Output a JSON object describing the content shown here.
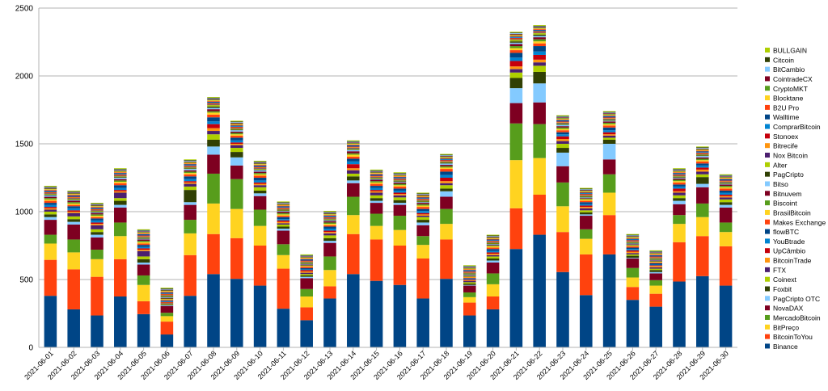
{
  "chart_data": {
    "type": "bar",
    "stacked": true,
    "title": "",
    "xlabel": "",
    "ylabel": "",
    "ylim": [
      0,
      2500
    ],
    "yticks": [
      0,
      500,
      1000,
      1500,
      2000,
      2500
    ],
    "grid": "horizontal",
    "legend_position": "right",
    "categories": [
      "2021-06-01",
      "2021-06-02",
      "2021-06-03",
      "2021-06-04",
      "2021-06-05",
      "2021-06-06",
      "2021-06-07",
      "2021-06-08",
      "2021-06-09",
      "2021-06-10",
      "2021-06-11",
      "2021-06-12",
      "2021-06-13",
      "2021-06-14",
      "2021-06-15",
      "2021-06-16",
      "2021-06-17",
      "2021-06-18",
      "2021-06-19",
      "2021-06-20",
      "2021-06-21",
      "2021-06-22",
      "2021-06-23",
      "2021-06-24",
      "2021-06-25",
      "2021-06-26",
      "2021-06-27",
      "2021-06-28",
      "2021-06-29",
      "2021-06-30"
    ],
    "series": [
      {
        "name": "Binance",
        "color": "#004586",
        "values": [
          380,
          280,
          235,
          375,
          245,
          95,
          380,
          540,
          505,
          455,
          285,
          200,
          360,
          540,
          490,
          460,
          360,
          505,
          235,
          280,
          725,
          830,
          555,
          385,
          685,
          350,
          300,
          485,
          525,
          455
        ]
      },
      {
        "name": "BitcoinToYou",
        "color": "#ff420e",
        "values": [
          265,
          295,
          285,
          275,
          95,
          95,
          300,
          295,
          300,
          295,
          295,
          95,
          90,
          295,
          305,
          290,
          295,
          290,
          95,
          95,
          300,
          295,
          295,
          300,
          290,
          95,
          95,
          290,
          295,
          290
        ]
      },
      {
        "name": "BitPreço",
        "color": "#ffd320",
        "values": [
          120,
          125,
          130,
          170,
          120,
          40,
          160,
          225,
          215,
          145,
          100,
          80,
          120,
          140,
          100,
          115,
          100,
          115,
          40,
          90,
          355,
          270,
          190,
          115,
          165,
          70,
          60,
          135,
          140,
          105
        ]
      },
      {
        "name": "MercadoBitcoin",
        "color": "#579d1c",
        "values": [
          65,
          95,
          70,
          100,
          70,
          25,
          100,
          220,
          220,
          120,
          80,
          55,
          100,
          135,
          90,
          105,
          65,
          110,
          35,
          80,
          270,
          250,
          175,
          70,
          135,
          70,
          40,
          65,
          100,
          70
        ]
      },
      {
        "name": "NovaDAX",
        "color": "#7e0021",
        "values": [
          110,
          110,
          90,
          110,
          80,
          50,
          110,
          140,
          100,
          100,
          100,
          80,
          100,
          100,
          80,
          80,
          80,
          90,
          50,
          80,
          150,
          160,
          120,
          100,
          110,
          70,
          50,
          80,
          120,
          110
        ]
      },
      {
        "name": "PagCripto OTC",
        "color": "#83caff",
        "values": [
          20,
          20,
          20,
          20,
          15,
          5,
          20,
          60,
          60,
          20,
          15,
          10,
          15,
          20,
          15,
          15,
          20,
          40,
          5,
          15,
          110,
          140,
          100,
          10,
          115,
          5,
          10,
          25,
          25,
          20
        ]
      },
      {
        "name": "Foxbit",
        "color": "#314004",
        "values": [
          20,
          20,
          20,
          30,
          25,
          5,
          90,
          50,
          40,
          20,
          15,
          10,
          20,
          30,
          20,
          20,
          20,
          20,
          10,
          15,
          75,
          85,
          35,
          15,
          30,
          15,
          15,
          20,
          50,
          20
        ]
      },
      {
        "name": "Coinext",
        "color": "#aecf00",
        "values": [
          20,
          20,
          20,
          20,
          20,
          5,
          25,
          40,
          30,
          25,
          15,
          10,
          20,
          20,
          20,
          20,
          20,
          25,
          10,
          15,
          40,
          45,
          30,
          15,
          15,
          10,
          10,
          20,
          20,
          20
        ]
      },
      {
        "name": "FTX",
        "color": "#4b1f6f",
        "values": [
          15,
          25,
          30,
          40,
          40,
          5,
          20,
          25,
          20,
          15,
          10,
          10,
          15,
          25,
          20,
          15,
          10,
          15,
          10,
          10,
          25,
          25,
          20,
          15,
          15,
          10,
          10,
          20,
          20,
          15
        ]
      },
      {
        "name": "BitcoinTrade",
        "color": "#ff950e",
        "values": [
          10,
          10,
          10,
          10,
          10,
          5,
          10,
          20,
          10,
          10,
          10,
          10,
          10,
          15,
          10,
          10,
          10,
          15,
          5,
          10,
          20,
          20,
          15,
          10,
          10,
          10,
          10,
          10,
          15,
          10
        ]
      },
      {
        "name": "UpCâmbio",
        "color": "#c5000b",
        "values": [
          10,
          10,
          10,
          10,
          10,
          5,
          10,
          30,
          10,
          10,
          10,
          10,
          10,
          30,
          10,
          10,
          10,
          25,
          5,
          10,
          40,
          35,
          20,
          10,
          15,
          10,
          5,
          20,
          15,
          10
        ]
      },
      {
        "name": "YouBtrade",
        "color": "#0084d1",
        "values": [
          15,
          15,
          15,
          15,
          10,
          5,
          15,
          20,
          15,
          15,
          10,
          5,
          15,
          20,
          15,
          15,
          15,
          20,
          5,
          10,
          25,
          25,
          15,
          10,
          15,
          10,
          5,
          15,
          15,
          15
        ]
      },
      {
        "name": "flowBTC",
        "color": "#004586",
        "values": [
          15,
          15,
          15,
          20,
          15,
          5,
          20,
          30,
          20,
          20,
          15,
          10,
          15,
          20,
          15,
          15,
          15,
          25,
          5,
          15,
          35,
          40,
          15,
          15,
          20,
          10,
          10,
          15,
          15,
          15
        ]
      },
      {
        "name": "Makes Exchange",
        "color": "#ff420e",
        "values": [
          15,
          10,
          10,
          15,
          10,
          5,
          15,
          20,
          15,
          15,
          10,
          10,
          10,
          15,
          15,
          15,
          15,
          20,
          5,
          10,
          20,
          20,
          15,
          10,
          15,
          10,
          5,
          15,
          15,
          15
        ]
      },
      {
        "name": "BrasilBitcoin",
        "color": "#ffd320",
        "values": [
          10,
          10,
          10,
          10,
          10,
          5,
          10,
          15,
          10,
          10,
          10,
          5,
          10,
          15,
          10,
          10,
          10,
          10,
          5,
          10,
          15,
          15,
          10,
          10,
          10,
          5,
          5,
          10,
          10,
          10
        ]
      },
      {
        "name": "Biscoint",
        "color": "#579d1c",
        "values": [
          10,
          10,
          10,
          10,
          10,
          5,
          10,
          10,
          10,
          10,
          10,
          5,
          10,
          10,
          10,
          10,
          10,
          10,
          5,
          5,
          15,
          15,
          10,
          5,
          10,
          5,
          5,
          10,
          10,
          10
        ]
      },
      {
        "name": "Bitnuvem",
        "color": "#7e0021",
        "values": [
          10,
          10,
          10,
          10,
          10,
          5,
          10,
          15,
          10,
          10,
          10,
          5,
          10,
          15,
          10,
          10,
          10,
          10,
          5,
          5,
          15,
          15,
          10,
          5,
          10,
          5,
          5,
          10,
          10,
          10
        ]
      },
      {
        "name": "Bitso",
        "color": "#83caff",
        "values": [
          10,
          5,
          5,
          10,
          5,
          5,
          10,
          10,
          10,
          10,
          5,
          5,
          5,
          10,
          5,
          5,
          5,
          10,
          5,
          5,
          10,
          10,
          10,
          5,
          5,
          5,
          5,
          5,
          10,
          5
        ]
      },
      {
        "name": "PagCripto",
        "color": "#314004",
        "values": [
          5,
          5,
          5,
          5,
          5,
          5,
          5,
          10,
          5,
          5,
          5,
          5,
          5,
          5,
          5,
          5,
          5,
          5,
          5,
          5,
          10,
          10,
          5,
          5,
          5,
          5,
          5,
          5,
          5,
          5
        ]
      },
      {
        "name": "Alter",
        "color": "#aecf00",
        "values": [
          5,
          5,
          5,
          5,
          5,
          5,
          5,
          10,
          5,
          5,
          5,
          5,
          5,
          5,
          5,
          5,
          5,
          5,
          5,
          5,
          10,
          10,
          5,
          5,
          5,
          5,
          5,
          5,
          5,
          5
        ]
      },
      {
        "name": "Nox Bitcoin",
        "color": "#4b1f6f",
        "values": [
          5,
          5,
          5,
          5,
          5,
          5,
          5,
          5,
          5,
          5,
          5,
          5,
          5,
          5,
          5,
          5,
          5,
          5,
          5,
          5,
          5,
          5,
          5,
          5,
          5,
          5,
          5,
          5,
          5,
          5
        ]
      },
      {
        "name": "Bitrecife",
        "color": "#ff950e",
        "values": [
          5,
          5,
          5,
          5,
          5,
          5,
          5,
          5,
          5,
          5,
          5,
          5,
          5,
          5,
          5,
          5,
          5,
          5,
          5,
          5,
          5,
          5,
          5,
          5,
          5,
          5,
          5,
          5,
          5,
          5
        ]
      },
      {
        "name": "Stonoex",
        "color": "#c5000b",
        "values": [
          5,
          5,
          5,
          5,
          5,
          5,
          5,
          5,
          5,
          5,
          5,
          5,
          5,
          5,
          5,
          5,
          5,
          5,
          5,
          5,
          5,
          5,
          5,
          5,
          5,
          5,
          5,
          5,
          5,
          5
        ]
      },
      {
        "name": "ComprarBitcoin",
        "color": "#0084d1",
        "values": [
          5,
          5,
          5,
          5,
          5,
          5,
          5,
          5,
          5,
          5,
          5,
          5,
          5,
          5,
          5,
          5,
          5,
          5,
          5,
          5,
          5,
          5,
          5,
          5,
          5,
          5,
          5,
          5,
          5,
          5
        ]
      },
      {
        "name": "Walltime",
        "color": "#004586",
        "values": [
          5,
          5,
          5,
          5,
          5,
          5,
          5,
          5,
          5,
          5,
          5,
          5,
          5,
          5,
          5,
          5,
          5,
          5,
          5,
          5,
          5,
          5,
          5,
          5,
          5,
          5,
          5,
          5,
          5,
          5
        ]
      },
      {
        "name": "B2U Pro",
        "color": "#ff420e",
        "values": [
          5,
          5,
          5,
          5,
          5,
          5,
          5,
          5,
          5,
          5,
          5,
          5,
          5,
          5,
          5,
          5,
          5,
          5,
          5,
          5,
          5,
          5,
          5,
          5,
          5,
          5,
          5,
          5,
          5,
          5
        ]
      },
      {
        "name": "Blocktane",
        "color": "#ffd320",
        "values": [
          5,
          5,
          5,
          5,
          5,
          5,
          5,
          5,
          5,
          5,
          5,
          5,
          5,
          5,
          5,
          5,
          5,
          5,
          5,
          5,
          5,
          5,
          5,
          5,
          5,
          5,
          5,
          5,
          5,
          5
        ]
      },
      {
        "name": "CryptoMKT",
        "color": "#579d1c",
        "values": [
          5,
          5,
          5,
          5,
          5,
          5,
          5,
          5,
          5,
          5,
          5,
          5,
          5,
          5,
          5,
          5,
          5,
          5,
          5,
          5,
          5,
          5,
          5,
          5,
          5,
          5,
          5,
          5,
          5,
          5
        ]
      },
      {
        "name": "CointradeCX",
        "color": "#7e0021",
        "values": [
          5,
          5,
          5,
          5,
          5,
          5,
          5,
          5,
          5,
          5,
          5,
          5,
          5,
          5,
          5,
          5,
          5,
          5,
          5,
          5,
          5,
          5,
          5,
          5,
          5,
          5,
          5,
          5,
          5,
          5
        ]
      },
      {
        "name": "BitCambio",
        "color": "#83caff",
        "values": [
          5,
          5,
          5,
          5,
          5,
          5,
          5,
          5,
          5,
          5,
          5,
          5,
          5,
          5,
          5,
          5,
          5,
          5,
          5,
          5,
          5,
          5,
          5,
          5,
          5,
          5,
          5,
          5,
          5,
          5
        ]
      },
      {
        "name": "Citcoin",
        "color": "#314004",
        "values": [
          5,
          5,
          5,
          5,
          5,
          5,
          5,
          5,
          5,
          5,
          5,
          5,
          5,
          5,
          5,
          5,
          5,
          5,
          5,
          5,
          5,
          5,
          5,
          5,
          5,
          5,
          5,
          5,
          5,
          5
        ]
      },
      {
        "name": "BULLGAIN",
        "color": "#aecf00",
        "values": [
          5,
          5,
          5,
          5,
          5,
          5,
          5,
          5,
          5,
          5,
          5,
          5,
          5,
          5,
          5,
          5,
          5,
          5,
          5,
          5,
          5,
          5,
          5,
          5,
          5,
          5,
          5,
          5,
          5,
          5
        ]
      }
    ]
  }
}
